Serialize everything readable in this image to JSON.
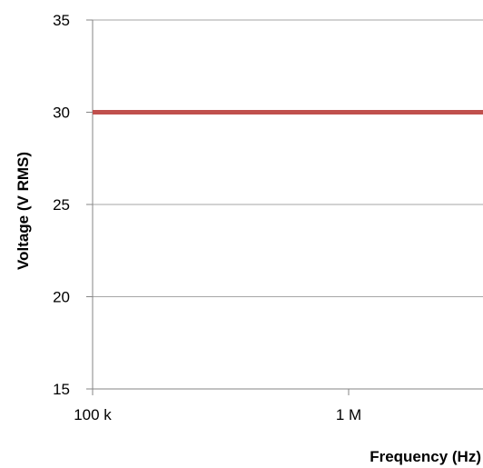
{
  "chart_data": {
    "type": "line",
    "title": "",
    "xlabel": "Frequency (Hz)",
    "ylabel": "Voltage (V RMS)",
    "x_scale": "log",
    "xlim": [
      100000,
      10000000
    ],
    "ylim": [
      15,
      35
    ],
    "y_ticks": [
      15,
      20,
      25,
      30,
      35
    ],
    "y_tick_labels": [
      "15",
      "20",
      "25",
      "30",
      "35"
    ],
    "x_ticks": [
      100000,
      1000000
    ],
    "x_tick_labels": [
      "100 k",
      "1 M"
    ],
    "grid": "horizontal",
    "series": [
      {
        "color": "#C0504D",
        "points": [
          {
            "x": 100000,
            "y": 30
          },
          {
            "x": 10000000,
            "y": 30
          }
        ]
      }
    ]
  },
  "colors": {
    "series": "#C0504D",
    "grid": "#A6A6A6",
    "axis": "#868686"
  }
}
